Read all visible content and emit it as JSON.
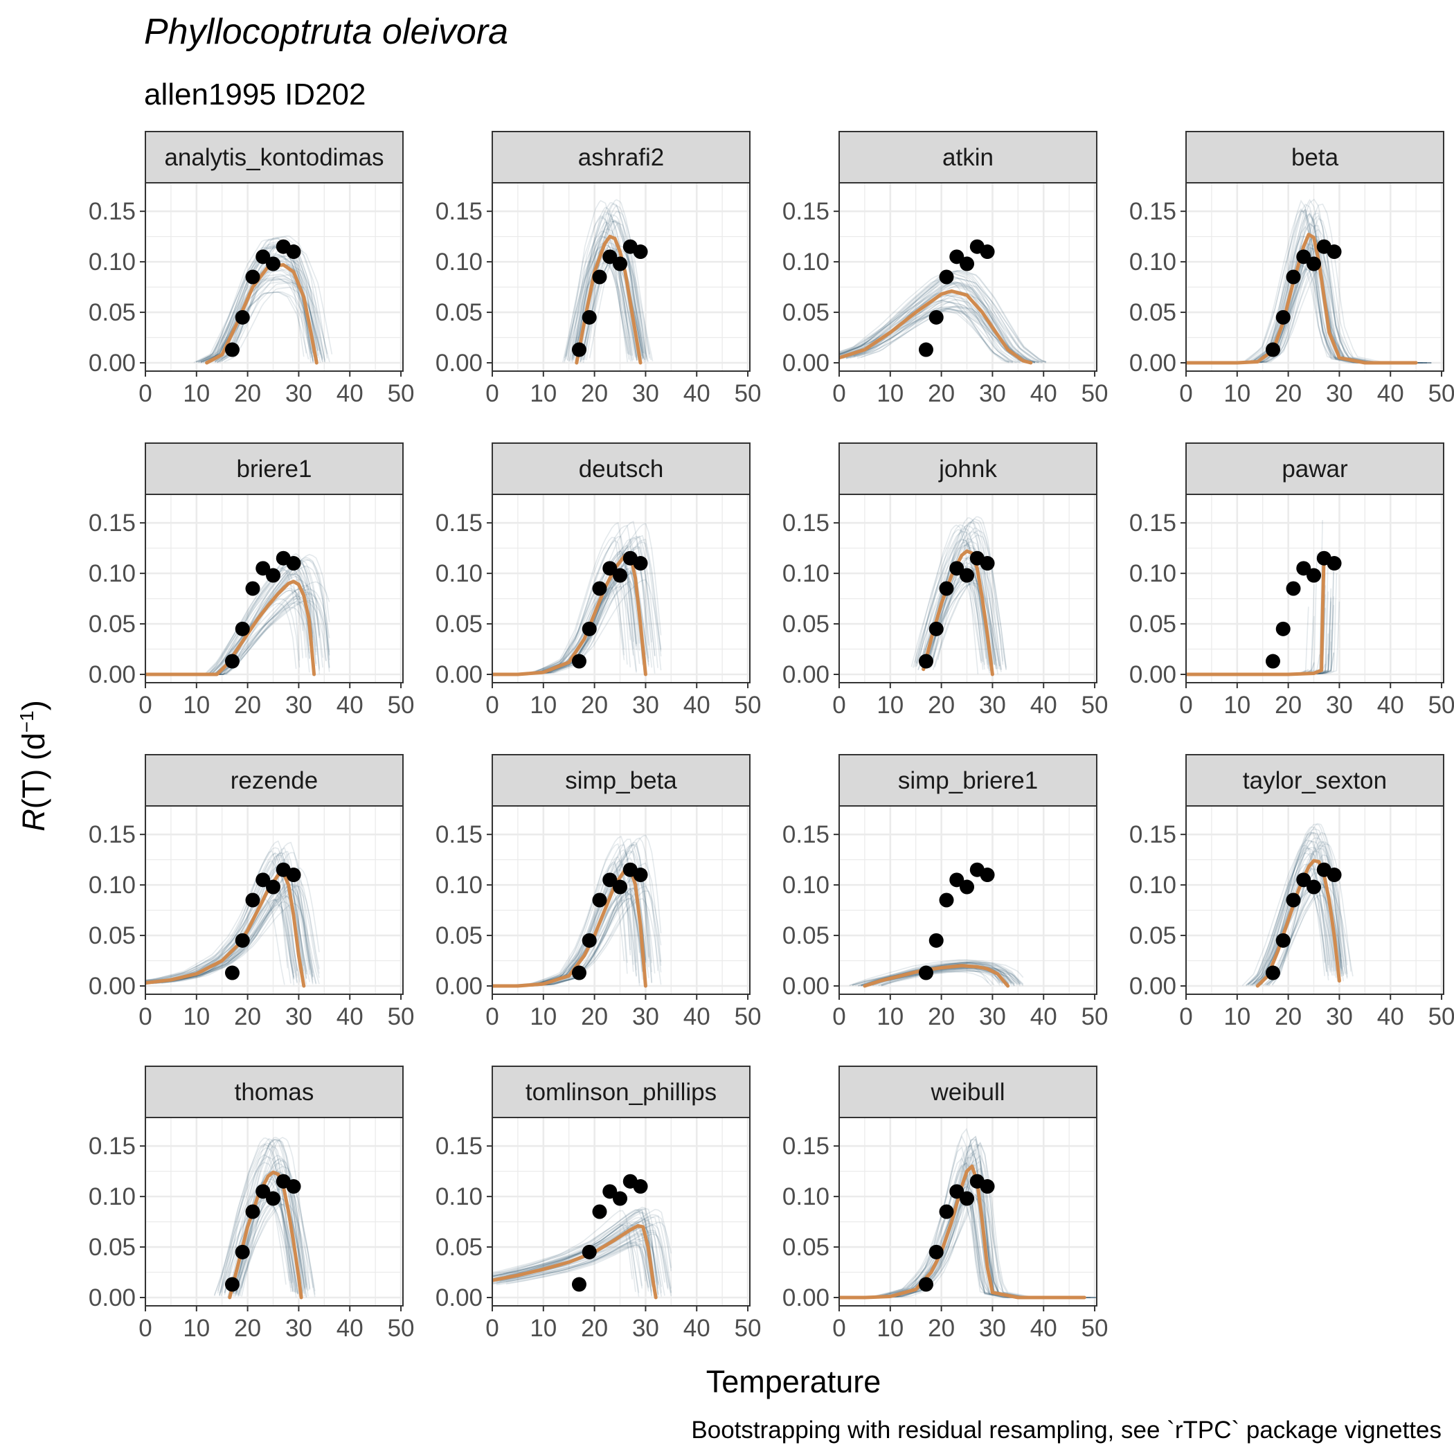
{
  "title": "Phyllocoptruta oleivora",
  "subtitle": "allen1995 ID202",
  "xlabel": "Temperature",
  "ylabel_main": "R",
  "ylabel_rest": "(T) (d",
  "ylabel_sup": "−1",
  "ylabel_close": ")",
  "caption": "Bootstrapping with residual resampling, see `rTPC` package vignettes",
  "colors": {
    "fit": "#D08A4E",
    "bootstrap": "#1F4E63",
    "points": "#000000",
    "strip": "#D9D9D9",
    "grid": "#EBEBEB",
    "frame": "#333333"
  },
  "chart_data": {
    "type": "line",
    "facet_layout": "4 columns x 4 rows (15 panels)",
    "xlim": [
      0,
      50
    ],
    "ylim": [
      0,
      0.17
    ],
    "x_ticks": [
      "0",
      "10",
      "20",
      "30",
      "40",
      "50"
    ],
    "y_ticks": [
      "0.00",
      "0.05",
      "0.10",
      "0.15"
    ],
    "x_tick_values": [
      0,
      10,
      20,
      30,
      40,
      50
    ],
    "y_tick_values": [
      0,
      0.05,
      0.1,
      0.15
    ],
    "observed": {
      "x": [
        17,
        19,
        21,
        23,
        25,
        27,
        29
      ],
      "y": [
        0.013,
        0.045,
        0.085,
        0.105,
        0.098,
        0.115,
        0.11
      ]
    },
    "panels": [
      {
        "model": "analytis_kontodimas",
        "fit_x": [
          12,
          15,
          18,
          21,
          24,
          27,
          29,
          31,
          32,
          33.5
        ],
        "fit_y": [
          0,
          0.008,
          0.04,
          0.075,
          0.095,
          0.097,
          0.09,
          0.065,
          0.04,
          0
        ]
      },
      {
        "model": "ashrafi2",
        "fit_x": [
          16.5,
          18,
          20,
          22,
          23,
          24,
          25,
          26,
          27,
          28,
          29
        ],
        "fit_y": [
          0,
          0.04,
          0.09,
          0.118,
          0.125,
          0.123,
          0.11,
          0.09,
          0.06,
          0.03,
          0
        ]
      },
      {
        "model": "atkin",
        "fit_x": [
          0,
          5,
          10,
          15,
          20,
          22,
          25,
          28,
          30,
          33,
          36,
          37.5
        ],
        "fit_y": [
          0.005,
          0.013,
          0.03,
          0.05,
          0.068,
          0.071,
          0.067,
          0.05,
          0.035,
          0.013,
          0.002,
          0
        ]
      },
      {
        "model": "beta",
        "fit_x": [
          0,
          10,
          14,
          17,
          19,
          21,
          23,
          24,
          25,
          26,
          27,
          28,
          30,
          35,
          40,
          45
        ],
        "fit_y": [
          0,
          0,
          0.001,
          0.012,
          0.04,
          0.08,
          0.115,
          0.127,
          0.124,
          0.1,
          0.065,
          0.03,
          0.005,
          0,
          0,
          0
        ]
      },
      {
        "model": "briere1",
        "fit_x": [
          0,
          14,
          16,
          18,
          20,
          22,
          24,
          26,
          28,
          29,
          30,
          31,
          32,
          33
        ],
        "fit_y": [
          0,
          0,
          0.01,
          0.025,
          0.04,
          0.055,
          0.068,
          0.08,
          0.09,
          0.092,
          0.089,
          0.078,
          0.055,
          0
        ]
      },
      {
        "model": "deutsch",
        "fit_x": [
          0,
          5,
          10,
          15,
          18,
          20,
          22,
          24,
          26,
          27,
          28,
          29,
          30
        ],
        "fit_y": [
          0,
          0,
          0.002,
          0.012,
          0.035,
          0.06,
          0.085,
          0.105,
          0.118,
          0.12,
          0.095,
          0.05,
          0
        ]
      },
      {
        "model": "johnk",
        "fit_x": [
          16.5,
          18,
          20,
          22,
          24,
          25,
          26,
          27,
          28,
          29,
          30
        ],
        "fit_y": [
          0.005,
          0.035,
          0.07,
          0.098,
          0.118,
          0.122,
          0.12,
          0.105,
          0.075,
          0.04,
          0
        ]
      },
      {
        "model": "pawar",
        "fit_x": [
          0,
          10,
          20,
          25,
          26.5,
          26.7,
          27
        ],
        "fit_y": [
          0,
          0,
          0,
          0.001,
          0.004,
          0.06,
          0.12
        ]
      },
      {
        "model": "rezende",
        "fit_x": [
          0,
          5,
          10,
          15,
          18,
          20,
          22,
          24,
          26,
          27,
          28,
          29,
          30,
          31
        ],
        "fit_y": [
          0.003,
          0.006,
          0.012,
          0.025,
          0.04,
          0.055,
          0.075,
          0.095,
          0.11,
          0.112,
          0.1,
          0.07,
          0.03,
          0
        ]
      },
      {
        "model": "simp_beta",
        "fit_x": [
          0,
          5,
          10,
          15,
          18,
          20,
          22,
          24,
          26,
          27,
          28,
          29,
          30
        ],
        "fit_y": [
          0,
          0,
          0.002,
          0.01,
          0.03,
          0.05,
          0.075,
          0.1,
          0.115,
          0.117,
          0.1,
          0.06,
          0
        ]
      },
      {
        "model": "simp_briere1",
        "fit_x": [
          5,
          8,
          12,
          16,
          20,
          24,
          27,
          29,
          31,
          32,
          33
        ],
        "fit_y": [
          0,
          0.005,
          0.01,
          0.015,
          0.018,
          0.02,
          0.019,
          0.017,
          0.012,
          0.006,
          0
        ]
      },
      {
        "model": "taylor_sexton",
        "fit_x": [
          14,
          16,
          18,
          20,
          22,
          24,
          25,
          26,
          27,
          28,
          29,
          30
        ],
        "fit_y": [
          0,
          0.01,
          0.035,
          0.065,
          0.095,
          0.118,
          0.124,
          0.123,
          0.11,
          0.085,
          0.05,
          0.005
        ]
      },
      {
        "model": "thomas",
        "fit_x": [
          16.5,
          18,
          20,
          22,
          24,
          25,
          26,
          27,
          28,
          29,
          30,
          30.5
        ],
        "fit_y": [
          0,
          0.03,
          0.07,
          0.1,
          0.12,
          0.124,
          0.122,
          0.11,
          0.085,
          0.055,
          0.02,
          0
        ]
      },
      {
        "model": "tomlinson_phillips",
        "fit_x": [
          0,
          5,
          10,
          15,
          20,
          24,
          27,
          28.5,
          29.5,
          30.5,
          31.5,
          32
        ],
        "fit_y": [
          0.017,
          0.022,
          0.028,
          0.035,
          0.045,
          0.057,
          0.067,
          0.071,
          0.07,
          0.05,
          0.015,
          0
        ]
      },
      {
        "model": "weibull",
        "fit_x": [
          0,
          5,
          10,
          15,
          18,
          20,
          22,
          24,
          25,
          26,
          27,
          28,
          29,
          30,
          35,
          40,
          45,
          48
        ],
        "fit_y": [
          0,
          0,
          0.001,
          0.008,
          0.025,
          0.045,
          0.075,
          0.11,
          0.125,
          0.13,
          0.115,
          0.075,
          0.03,
          0.005,
          0,
          0,
          0,
          0
        ]
      }
    ]
  }
}
